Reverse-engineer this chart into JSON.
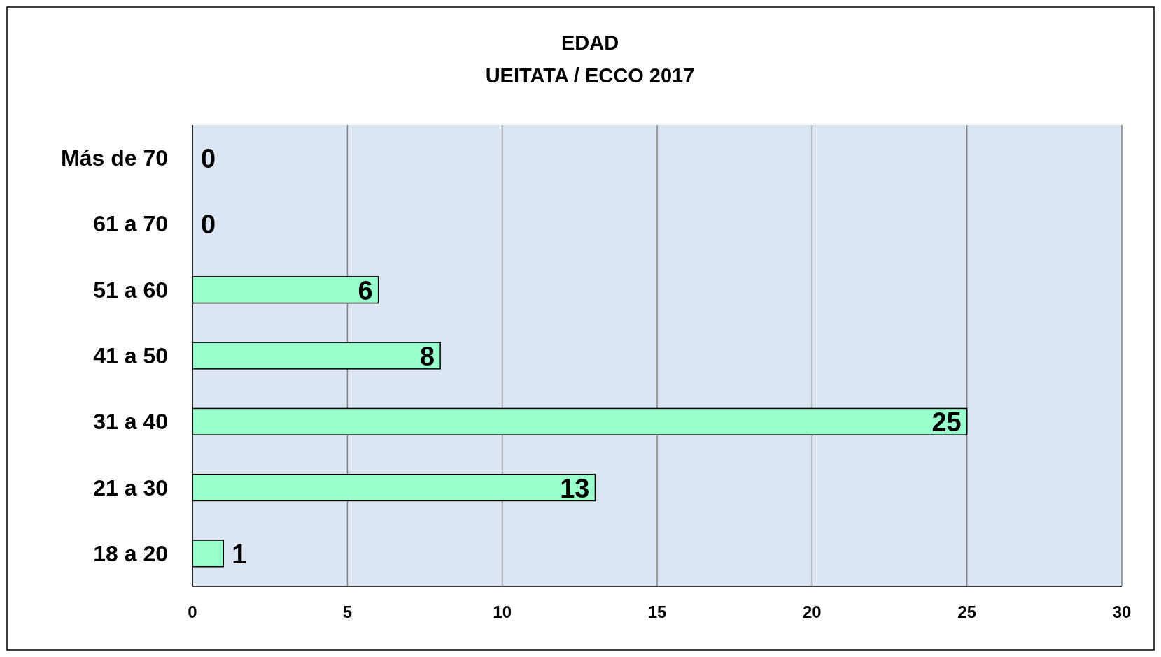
{
  "chart_data": {
    "type": "bar",
    "orientation": "horizontal",
    "title": "EDAD",
    "subtitle": "UEITATA / ECCO 2017",
    "categories": [
      "Más de 70",
      "61 a 70",
      "51 a 60",
      "41 a 50",
      "31 a 40",
      "21 a 30",
      "18 a 20"
    ],
    "values": [
      0,
      0,
      6,
      8,
      25,
      13,
      1
    ],
    "color": "#99ffcc",
    "xlim": [
      0,
      30
    ],
    "xticks": [
      0,
      5,
      10,
      15,
      20,
      25,
      30
    ],
    "grid": "x",
    "data_labels": true
  }
}
